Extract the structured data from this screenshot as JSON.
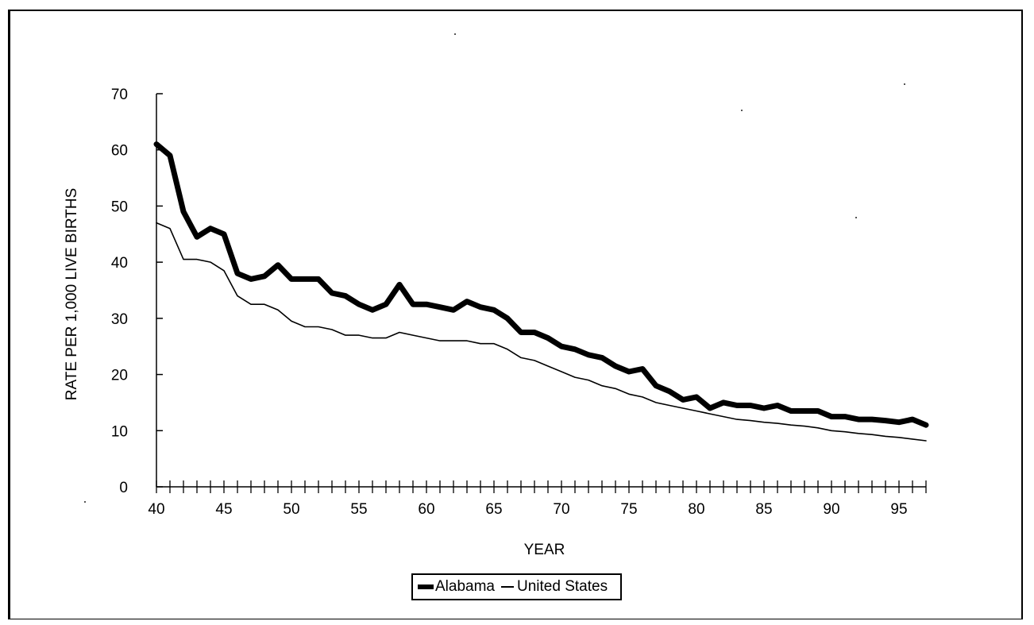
{
  "chart_data": {
    "type": "line",
    "title": "",
    "xlabel": "YEAR",
    "ylabel": "RATE PER 1,000 LIVE BIRTHS",
    "xlim": [
      40,
      97
    ],
    "ylim": [
      0,
      70
    ],
    "x_ticks": [
      "40",
      "45",
      "50",
      "55",
      "60",
      "65",
      "70",
      "75",
      "80",
      "85",
      "90",
      "95"
    ],
    "y_ticks": [
      "0",
      "10",
      "20",
      "30",
      "40",
      "50",
      "60",
      "70"
    ],
    "grid": false,
    "legend_position": "bottom",
    "x": [
      40,
      41,
      42,
      43,
      44,
      45,
      46,
      47,
      48,
      49,
      50,
      51,
      52,
      53,
      54,
      55,
      56,
      57,
      58,
      59,
      60,
      61,
      62,
      63,
      64,
      65,
      66,
      67,
      68,
      69,
      70,
      71,
      72,
      73,
      74,
      75,
      76,
      77,
      78,
      79,
      80,
      81,
      82,
      83,
      84,
      85,
      86,
      87,
      88,
      89,
      90,
      91,
      92,
      93,
      94,
      95,
      96,
      97
    ],
    "series": [
      {
        "name": "Alabama",
        "values": [
          61,
          59,
          49,
          44.5,
          46,
          45,
          38,
          37,
          37.5,
          39.5,
          37,
          37,
          37,
          34.5,
          34,
          32.5,
          31.5,
          32.5,
          36,
          32.5,
          32.5,
          32,
          31.5,
          33,
          32,
          31.5,
          30,
          27.5,
          27.5,
          26.5,
          25,
          24.5,
          23.5,
          23,
          21.5,
          20.5,
          21,
          18,
          17,
          15.5,
          16,
          14,
          15,
          14.5,
          14.5,
          14,
          14.5,
          13.5,
          13.5,
          13.5,
          12.5,
          12.5,
          12,
          12,
          11.8,
          11.5,
          12,
          11
        ]
      },
      {
        "name": "United States",
        "values": [
          47,
          46,
          40.5,
          40.5,
          40,
          38.5,
          34,
          32.5,
          32.5,
          31.5,
          29.5,
          28.5,
          28.5,
          28,
          27,
          27,
          26.5,
          26.5,
          27.5,
          27,
          26.5,
          26,
          26,
          26,
          25.5,
          25.5,
          24.5,
          23,
          22.5,
          21.5,
          20.5,
          19.5,
          19,
          18,
          17.5,
          16.5,
          16,
          15,
          14.5,
          14,
          13.5,
          13,
          12.5,
          12,
          11.8,
          11.5,
          11.3,
          11,
          10.8,
          10.5,
          10,
          9.8,
          9.5,
          9.3,
          9,
          8.8,
          8.5,
          8.2
        ]
      }
    ]
  },
  "legend": {
    "items": [
      {
        "label": "Alabama",
        "style": "thick"
      },
      {
        "label": "United States",
        "style": "thin"
      }
    ]
  },
  "colors": {
    "line": "#000000",
    "background": "#ffffff"
  }
}
